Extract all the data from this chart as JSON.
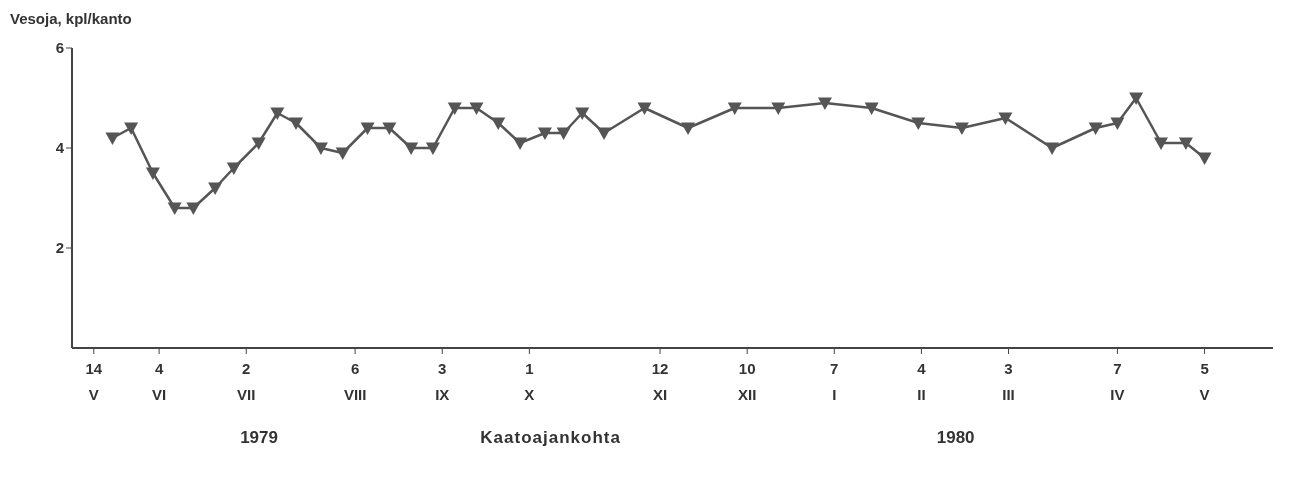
{
  "chart_data": {
    "type": "line",
    "ylabel": "Vesoja, kpl/kanto",
    "xlabel": "Kaatoajankohta",
    "annotations": [
      "1979",
      "1980"
    ],
    "x": [
      "1979-05-20",
      "1979-05-26",
      "1979-06-02",
      "1979-06-09",
      "1979-06-15",
      "1979-06-22",
      "1979-06-28",
      "1979-07-06",
      "1979-07-12",
      "1979-07-18",
      "1979-07-26",
      "1979-08-02",
      "1979-08-10",
      "1979-08-17",
      "1979-08-24",
      "1979-08-31",
      "1979-09-07",
      "1979-09-14",
      "1979-09-21",
      "1979-09-28",
      "1979-10-06",
      "1979-10-12",
      "1979-10-18",
      "1979-10-25",
      "1979-11-07",
      "1979-11-21",
      "1979-12-06",
      "1979-12-20",
      "1980-01-04",
      "1980-01-19",
      "1980-02-03",
      "1980-02-17",
      "1980-03-02",
      "1980-03-17",
      "1980-03-31",
      "1980-04-07",
      "1980-04-13",
      "1980-04-21",
      "1980-04-29",
      "1980-05-05"
    ],
    "series": [
      {
        "color": "#555555",
        "values": [
          4.2,
          4.4,
          3.5,
          2.8,
          2.8,
          3.2,
          3.6,
          4.1,
          4.7,
          4.5,
          4.0,
          3.9,
          4.4,
          4.4,
          4.0,
          4.0,
          4.8,
          4.8,
          4.5,
          4.1,
          4.3,
          4.3,
          4.7,
          4.3,
          4.8,
          4.4,
          4.8,
          4.8,
          4.9,
          4.8,
          4.5,
          4.4,
          4.6,
          4.0,
          4.4,
          4.5,
          5.0,
          4.1,
          4.1,
          3.8
        ]
      }
    ],
    "xlim": [
      "1979-05-07",
      "1980-05-27"
    ],
    "xticks": [
      {
        "value": "1979-05-14",
        "label": "14\nV"
      },
      {
        "value": "1979-06-04",
        "label": "4\nVI"
      },
      {
        "value": "1979-07-02",
        "label": "2\nVII"
      },
      {
        "value": "1979-08-06",
        "label": "6\nVIII"
      },
      {
        "value": "1979-09-03",
        "label": "3\nIX"
      },
      {
        "value": "1979-10-01",
        "label": "1\nX"
      },
      {
        "value": "1979-11-12",
        "label": "12\nXI"
      },
      {
        "value": "1979-12-10",
        "label": "10\nXII"
      },
      {
        "value": "1980-01-07",
        "label": "7\nI"
      },
      {
        "value": "1980-02-04",
        "label": "4\nII"
      },
      {
        "value": "1980-03-03",
        "label": "3\nIII"
      },
      {
        "value": "1980-04-07",
        "label": "7\nIV"
      },
      {
        "value": "1980-05-05",
        "label": "5\nV"
      }
    ],
    "ylim": [
      0,
      6
    ],
    "yticks": [
      2,
      4,
      6
    ],
    "marker": "triangle",
    "line_style": "solid",
    "grid": false,
    "legend": false
  }
}
